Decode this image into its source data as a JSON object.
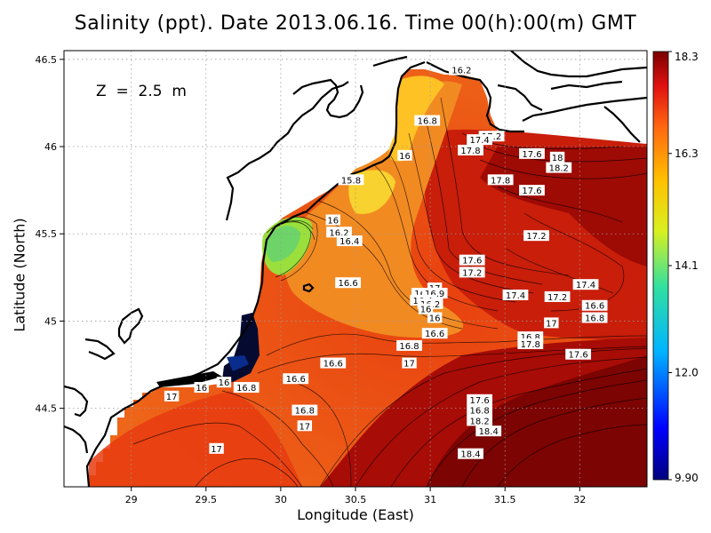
{
  "title": "Salinity (ppt). Date 2013.06.16. Time 00(h):00(m) GMT",
  "depth_label": "Z  =  2.5  m",
  "xlabel": "Longitude (East)",
  "ylabel": "Latitude (North)",
  "chart_data": {
    "type": "heatmap",
    "variable": "Salinity (ppt)",
    "date": "2013.06.16",
    "time": "00(h):00(m) GMT",
    "depth_m": 2.5,
    "xlim": [
      28.55,
      32.45
    ],
    "ylim": [
      44.05,
      46.55
    ],
    "x_ticks": [
      29,
      29.5,
      30,
      30.5,
      31,
      31.5,
      32
    ],
    "x_tick_labels": [
      "29",
      "29.5",
      "30",
      "30.5",
      "31",
      "31.5",
      "32"
    ],
    "y_ticks": [
      44.5,
      45,
      45.5,
      46,
      46.5
    ],
    "y_tick_labels": [
      "44.5",
      "45",
      "45.5",
      "46",
      "46.5"
    ],
    "colorbar": {
      "min": 9.9,
      "max": 18.3,
      "tick_labels": [
        "18.3",
        "16.3",
        "14.1",
        "12.0",
        "9.90"
      ],
      "tick_values": [
        18.3,
        16.3,
        14.1,
        12.0,
        9.9
      ]
    },
    "grid": true,
    "contour_labels": [
      {
        "lon": 31.21,
        "lat": 46.44,
        "text": "16.2"
      },
      {
        "lon": 30.98,
        "lat": 46.15,
        "text": "16.8"
      },
      {
        "lon": 31.41,
        "lat": 46.06,
        "text": "17.2"
      },
      {
        "lon": 31.33,
        "lat": 46.04,
        "text": "17.4"
      },
      {
        "lon": 31.27,
        "lat": 45.98,
        "text": "17.8"
      },
      {
        "lon": 31.68,
        "lat": 45.96,
        "text": "17.6"
      },
      {
        "lon": 31.85,
        "lat": 45.94,
        "text": "18"
      },
      {
        "lon": 31.86,
        "lat": 45.88,
        "text": "18.2"
      },
      {
        "lon": 30.83,
        "lat": 45.95,
        "text": "16"
      },
      {
        "lon": 30.47,
        "lat": 45.81,
        "text": "15.8"
      },
      {
        "lon": 31.47,
        "lat": 45.81,
        "text": "17.8"
      },
      {
        "lon": 31.68,
        "lat": 45.75,
        "text": "17.6"
      },
      {
        "lon": 30.35,
        "lat": 45.58,
        "text": "16"
      },
      {
        "lon": 30.39,
        "lat": 45.51,
        "text": "16.2"
      },
      {
        "lon": 30.46,
        "lat": 45.46,
        "text": "16.4"
      },
      {
        "lon": 31.71,
        "lat": 45.49,
        "text": "17.2"
      },
      {
        "lon": 31.28,
        "lat": 45.35,
        "text": "17.6"
      },
      {
        "lon": 31.28,
        "lat": 45.28,
        "text": "17.2"
      },
      {
        "lon": 30.45,
        "lat": 45.22,
        "text": "16.6"
      },
      {
        "lon": 31.03,
        "lat": 45.19,
        "text": "17"
      },
      {
        "lon": 30.96,
        "lat": 45.16,
        "text": "16.9"
      },
      {
        "lon": 31.03,
        "lat": 45.16,
        "text": "16.9"
      },
      {
        "lon": 31.57,
        "lat": 45.15,
        "text": "17.4"
      },
      {
        "lon": 31.85,
        "lat": 45.14,
        "text": "17.2"
      },
      {
        "lon": 32.04,
        "lat": 45.21,
        "text": "17.4"
      },
      {
        "lon": 30.95,
        "lat": 45.12,
        "text": "16.4"
      },
      {
        "lon": 31.0,
        "lat": 45.1,
        "text": "16.2"
      },
      {
        "lon": 32.1,
        "lat": 45.09,
        "text": "16.6"
      },
      {
        "lon": 30.97,
        "lat": 45.07,
        "text": "16"
      },
      {
        "lon": 31.03,
        "lat": 45.02,
        "text": "16"
      },
      {
        "lon": 32.1,
        "lat": 45.02,
        "text": "16.8"
      },
      {
        "lon": 31.81,
        "lat": 44.99,
        "text": "17"
      },
      {
        "lon": 31.03,
        "lat": 44.93,
        "text": "16.6"
      },
      {
        "lon": 31.67,
        "lat": 44.91,
        "text": "16.8"
      },
      {
        "lon": 31.67,
        "lat": 44.87,
        "text": "17.8"
      },
      {
        "lon": 30.86,
        "lat": 44.86,
        "text": "16.8"
      },
      {
        "lon": 31.99,
        "lat": 44.81,
        "text": "17.6"
      },
      {
        "lon": 30.35,
        "lat": 44.76,
        "text": "16.6"
      },
      {
        "lon": 30.86,
        "lat": 44.76,
        "text": "17"
      },
      {
        "lon": 30.1,
        "lat": 44.67,
        "text": "16.6"
      },
      {
        "lon": 29.77,
        "lat": 44.62,
        "text": "16.8"
      },
      {
        "lon": 29.47,
        "lat": 44.62,
        "text": "16"
      },
      {
        "lon": 29.62,
        "lat": 44.65,
        "text": "16"
      },
      {
        "lon": 29.27,
        "lat": 44.57,
        "text": "17"
      },
      {
        "lon": 31.33,
        "lat": 44.55,
        "text": "17.6"
      },
      {
        "lon": 31.33,
        "lat": 44.49,
        "text": "16.8"
      },
      {
        "lon": 30.16,
        "lat": 44.49,
        "text": "16.8"
      },
      {
        "lon": 31.33,
        "lat": 44.43,
        "text": "18.2"
      },
      {
        "lon": 30.16,
        "lat": 44.4,
        "text": "17"
      },
      {
        "lon": 31.39,
        "lat": 44.37,
        "text": "18.4"
      },
      {
        "lon": 29.57,
        "lat": 44.27,
        "text": "17"
      },
      {
        "lon": 31.27,
        "lat": 44.24,
        "text": "18.4"
      }
    ]
  }
}
